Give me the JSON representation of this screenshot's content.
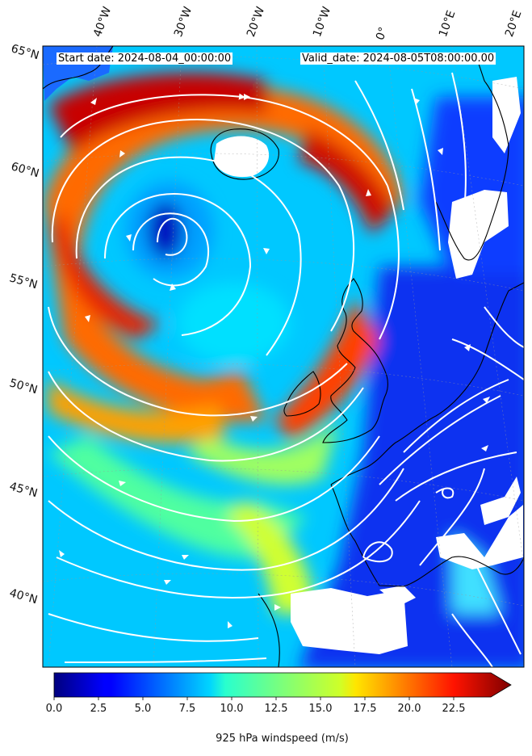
{
  "header": {
    "start_date": "Start date: 2024-08-04_00:00:00",
    "valid_date": "Valid_date: 2024-08-05T08:00:00.00"
  },
  "map": {
    "longitude_labels": [
      "40°W",
      "30°W",
      "20°W",
      "10°W",
      "0°",
      "10°E",
      "20°E"
    ],
    "latitude_labels": [
      "65°N",
      "60°N",
      "55°N",
      "50°N",
      "45°N",
      "40°N"
    ],
    "variable": "925 hPa windspeed",
    "streamline_color": "#ffffff",
    "coastline_color": "#000000"
  },
  "colorbar": {
    "label": "925 hPa windspeed (m/s)",
    "ticks": [
      "0.0",
      "2.5",
      "5.0",
      "7.5",
      "10.0",
      "12.5",
      "15.0",
      "17.5",
      "20.0",
      "22.5"
    ],
    "min": 0,
    "max": 25,
    "extend": "max",
    "colormap": "jet"
  }
}
